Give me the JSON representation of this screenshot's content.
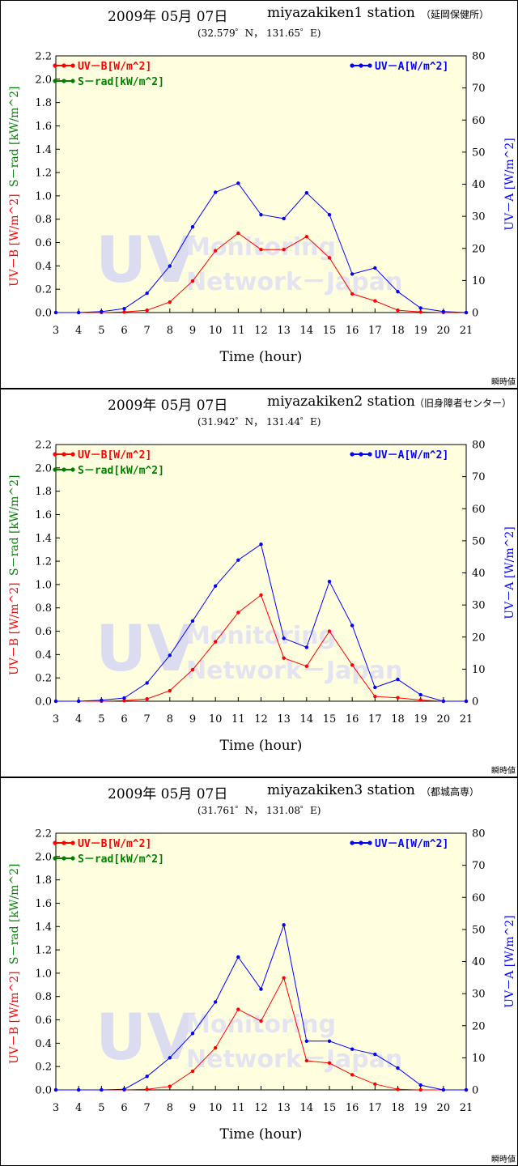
{
  "footer_label": "瞬時値",
  "watermark": {
    "big": "UV",
    "line1": "Monitoring",
    "line2": "Network－Japan"
  },
  "legend": {
    "uvb": "UV－B[W/m^2]",
    "srad": "S－rad[kW/m^2]",
    "uva": "UV－A[W/m^2]"
  },
  "axis_labels": {
    "x": "Time (hour)",
    "y_left_uvb": "UV－B [W/m^2]",
    "y_left_srad": "S－rad [kW/m^2]",
    "y_right": "UV－A [W/m^2]"
  },
  "colors": {
    "uvb": "#ff0000",
    "srad": "#008000",
    "uva": "#0000ff",
    "plot_bg": "#ffffe0"
  },
  "chart_data": [
    {
      "type": "line",
      "title_date": "2009年 05月 07日",
      "title_station": "miyazakiken1 station",
      "title_place": "（延岡保健所）",
      "coords": "(32.579゜N， 131.65゜E)",
      "x": [
        3,
        4,
        5,
        6,
        7,
        8,
        9,
        10,
        11,
        12,
        13,
        14,
        15,
        16,
        17,
        18,
        19,
        20,
        21
      ],
      "xlim": [
        3,
        21
      ],
      "ylim_left": [
        0,
        2.2
      ],
      "ylim_right": [
        0,
        80
      ],
      "left_ticks": [
        "0.0",
        "0.2",
        "0.4",
        "0.6",
        "0.8",
        "1.0",
        "1.2",
        "1.4",
        "1.6",
        "1.8",
        "2.0",
        "2.2"
      ],
      "right_ticks": [
        "0",
        "10",
        "20",
        "30",
        "40",
        "50",
        "60",
        "70",
        "80"
      ],
      "series": [
        {
          "name": "UV－B[W/m^2]",
          "axis": "left",
          "values": [
            0,
            0,
            0,
            0.005,
            0.02,
            0.09,
            0.27,
            0.53,
            0.68,
            0.54,
            0.54,
            0.65,
            0.47,
            0.16,
            0.1,
            0.02,
            0.005,
            0,
            0
          ]
        },
        {
          "name": "UV－A[W/m^2]",
          "axis": "right",
          "values": [
            0,
            0,
            0.3,
            1.2,
            6,
            14.5,
            26.7,
            37.5,
            40.3,
            30.5,
            29.3,
            37.3,
            30.5,
            12.0,
            13.9,
            6.5,
            1.4,
            0.3,
            0
          ]
        }
      ]
    },
    {
      "type": "line",
      "title_date": "2009年 05月 07日",
      "title_station": "miyazakiken2 station",
      "title_place": "（旧身障者センター）",
      "coords": "(31.942゜N， 131.44゜E)",
      "x": [
        3,
        4,
        5,
        6,
        7,
        8,
        9,
        10,
        11,
        12,
        13,
        14,
        15,
        16,
        17,
        18,
        19,
        20,
        21
      ],
      "xlim": [
        3,
        21
      ],
      "ylim_left": [
        0,
        2.2
      ],
      "ylim_right": [
        0,
        80
      ],
      "left_ticks": [
        "0.0",
        "0.2",
        "0.4",
        "0.6",
        "0.8",
        "1.0",
        "1.2",
        "1.4",
        "1.6",
        "1.8",
        "2.0",
        "2.2"
      ],
      "right_ticks": [
        "0",
        "10",
        "20",
        "30",
        "40",
        "50",
        "60",
        "70",
        "80"
      ],
      "series": [
        {
          "name": "UV－B[W/m^2]",
          "axis": "left",
          "values": [
            0,
            0,
            0,
            0.005,
            0.02,
            0.09,
            0.27,
            0.51,
            0.76,
            0.91,
            0.37,
            0.3,
            0.6,
            0.31,
            0.04,
            0.03,
            0.01,
            0,
            0
          ]
        },
        {
          "name": "UV－A[W/m^2]",
          "axis": "right",
          "values": [
            0,
            0,
            0.3,
            1.0,
            5.7,
            14.3,
            25.0,
            35.9,
            44.0,
            48.9,
            19.6,
            16.8,
            37.3,
            23.6,
            4.3,
            6.8,
            2.0,
            0,
            0
          ]
        }
      ]
    },
    {
      "type": "line",
      "title_date": "2009年 05月 07日",
      "title_station": "miyazakiken3 station",
      "title_place": "（都城高専）",
      "coords": "(31.761゜N， 131.08゜E)",
      "x": [
        3,
        4,
        5,
        6,
        7,
        8,
        9,
        10,
        11,
        12,
        13,
        14,
        15,
        16,
        17,
        18,
        19,
        20,
        21
      ],
      "xlim": [
        3,
        21
      ],
      "ylim_left": [
        0,
        2.2
      ],
      "ylim_right": [
        0,
        80
      ],
      "left_ticks": [
        "0.0",
        "0.2",
        "0.4",
        "0.6",
        "0.8",
        "1.0",
        "1.2",
        "1.4",
        "1.6",
        "1.8",
        "2.0",
        "2.2"
      ],
      "right_ticks": [
        "0",
        "10",
        "20",
        "30",
        "40",
        "50",
        "60",
        "70",
        "80"
      ],
      "series": [
        {
          "name": "UV－B[W/m^2]",
          "axis": "left",
          "values": [
            0,
            0,
            0,
            0,
            0.005,
            0.03,
            0.16,
            0.36,
            0.69,
            0.59,
            0.96,
            0.25,
            0.23,
            0.13,
            0.05,
            0.005,
            0,
            0,
            0
          ]
        },
        {
          "name": "UV－A[W/m^2]",
          "axis": "right",
          "values": [
            0,
            0,
            0,
            0.2,
            4.2,
            10.0,
            17.6,
            27.4,
            41.4,
            31.4,
            51.4,
            15.2,
            15.2,
            12.7,
            11.1,
            6.8,
            1.5,
            0,
            0
          ]
        }
      ]
    }
  ]
}
